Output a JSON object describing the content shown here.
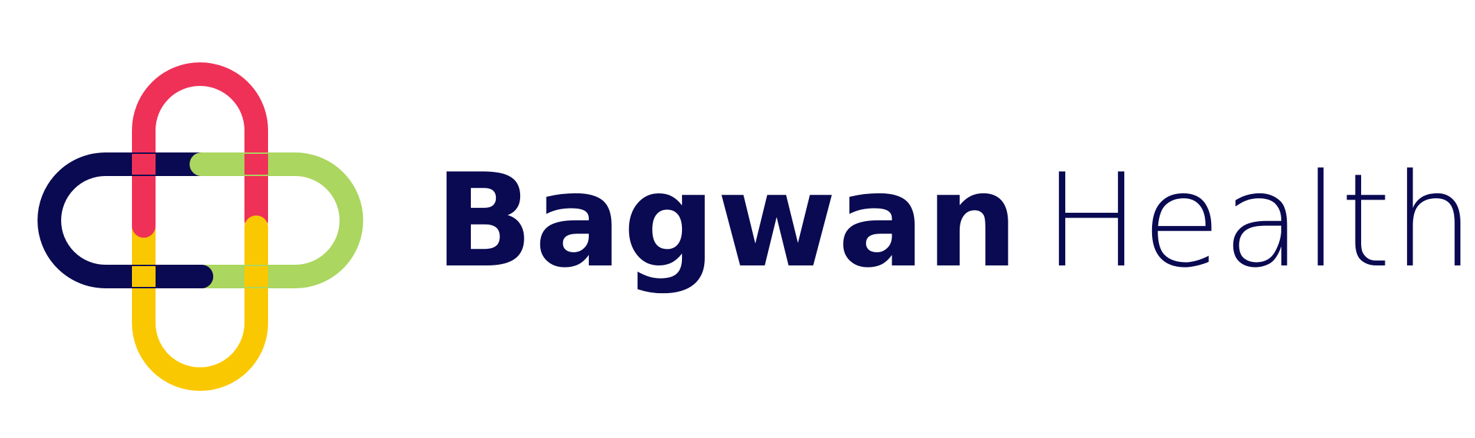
{
  "brand": {
    "name_primary": "Bagwan",
    "name_secondary": "Health"
  },
  "colors": {
    "navy": "#0a0a52",
    "red": "#ef3157",
    "green": "#abd65f",
    "yellow": "#fac800",
    "background": "#ffffff"
  },
  "icons": {
    "logo_mark": "interlocking-cross-links-logo"
  }
}
